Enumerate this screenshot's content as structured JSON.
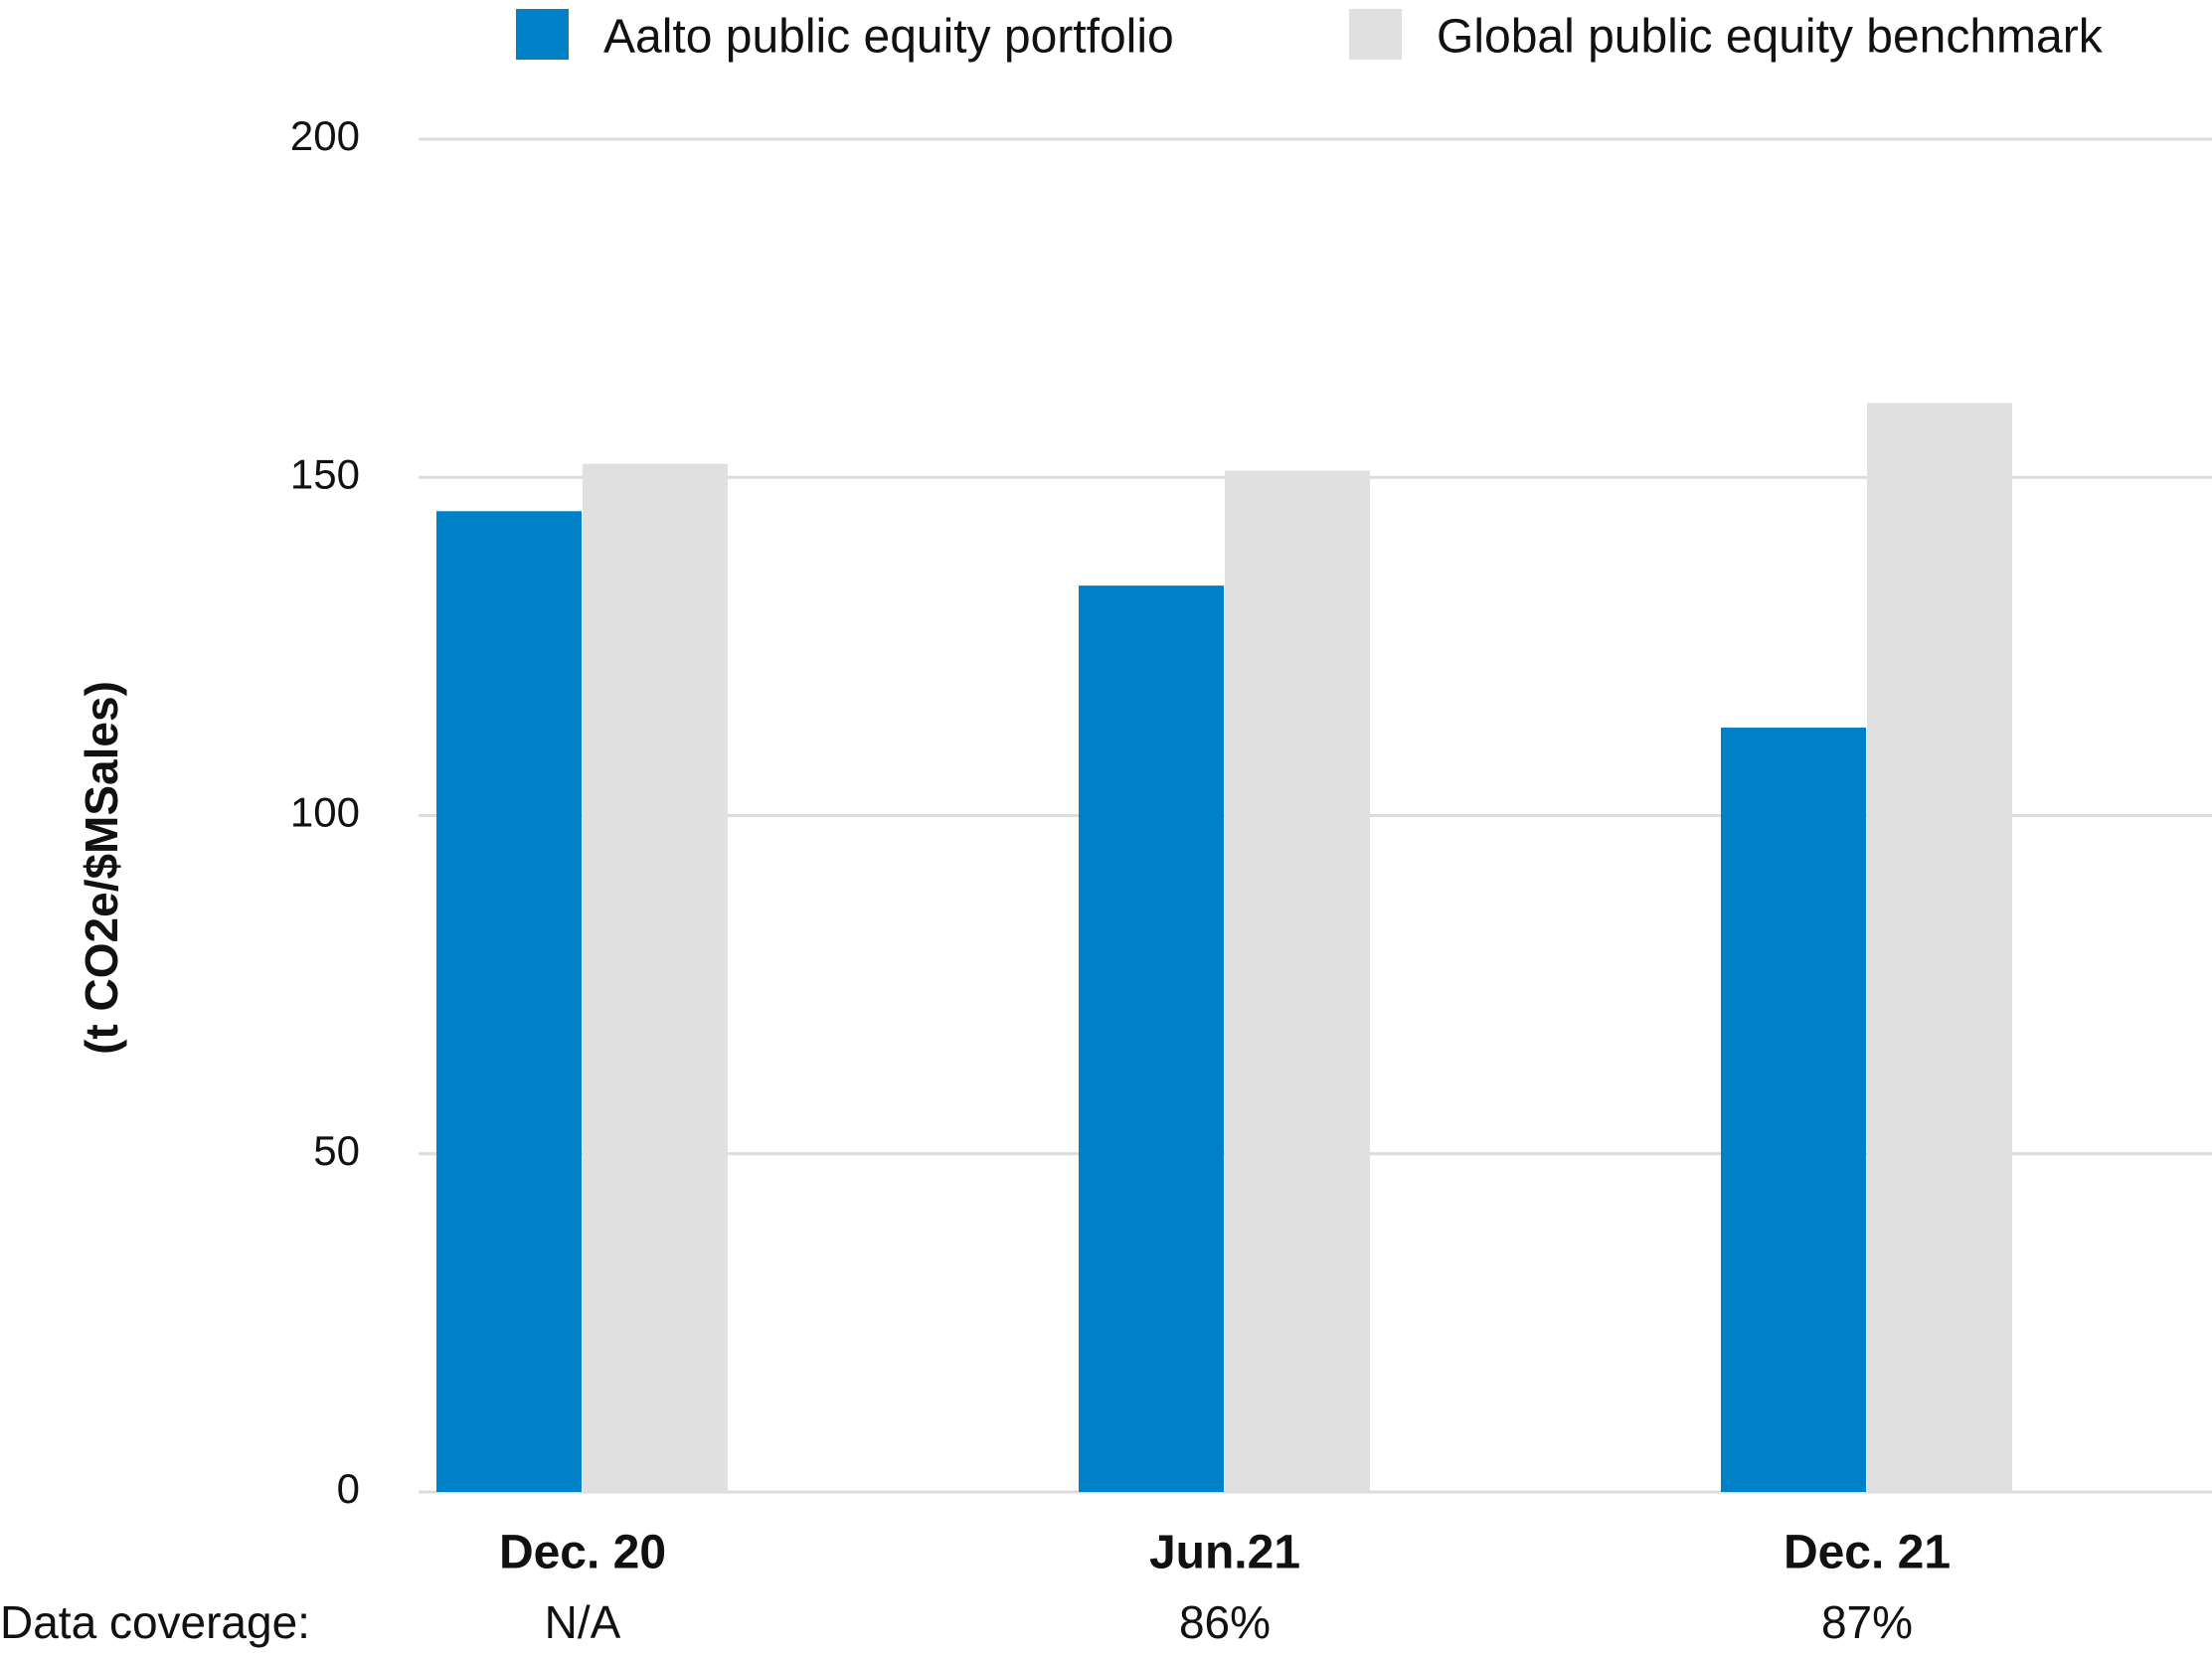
{
  "chart_data": {
    "type": "bar",
    "y_label": "(t CO2e/$MSales)",
    "categories": [
      "Dec. 20",
      "Jun.21",
      "Dec. 21"
    ],
    "series": [
      {
        "name": "Aalto public equity portfolio",
        "color": "#0080c6",
        "values": [
          145,
          134,
          113
        ]
      },
      {
        "name": "Global public equity benchmark",
        "color": "#e0e0e0",
        "values": [
          152,
          151,
          161
        ]
      }
    ],
    "ylim": [
      0,
      200
    ],
    "yticks": [
      0,
      50,
      100,
      150,
      200
    ],
    "grid": true,
    "data_coverage": {
      "label": "Data coverage:",
      "values": [
        "N/A",
        "86%",
        "87%"
      ]
    }
  }
}
